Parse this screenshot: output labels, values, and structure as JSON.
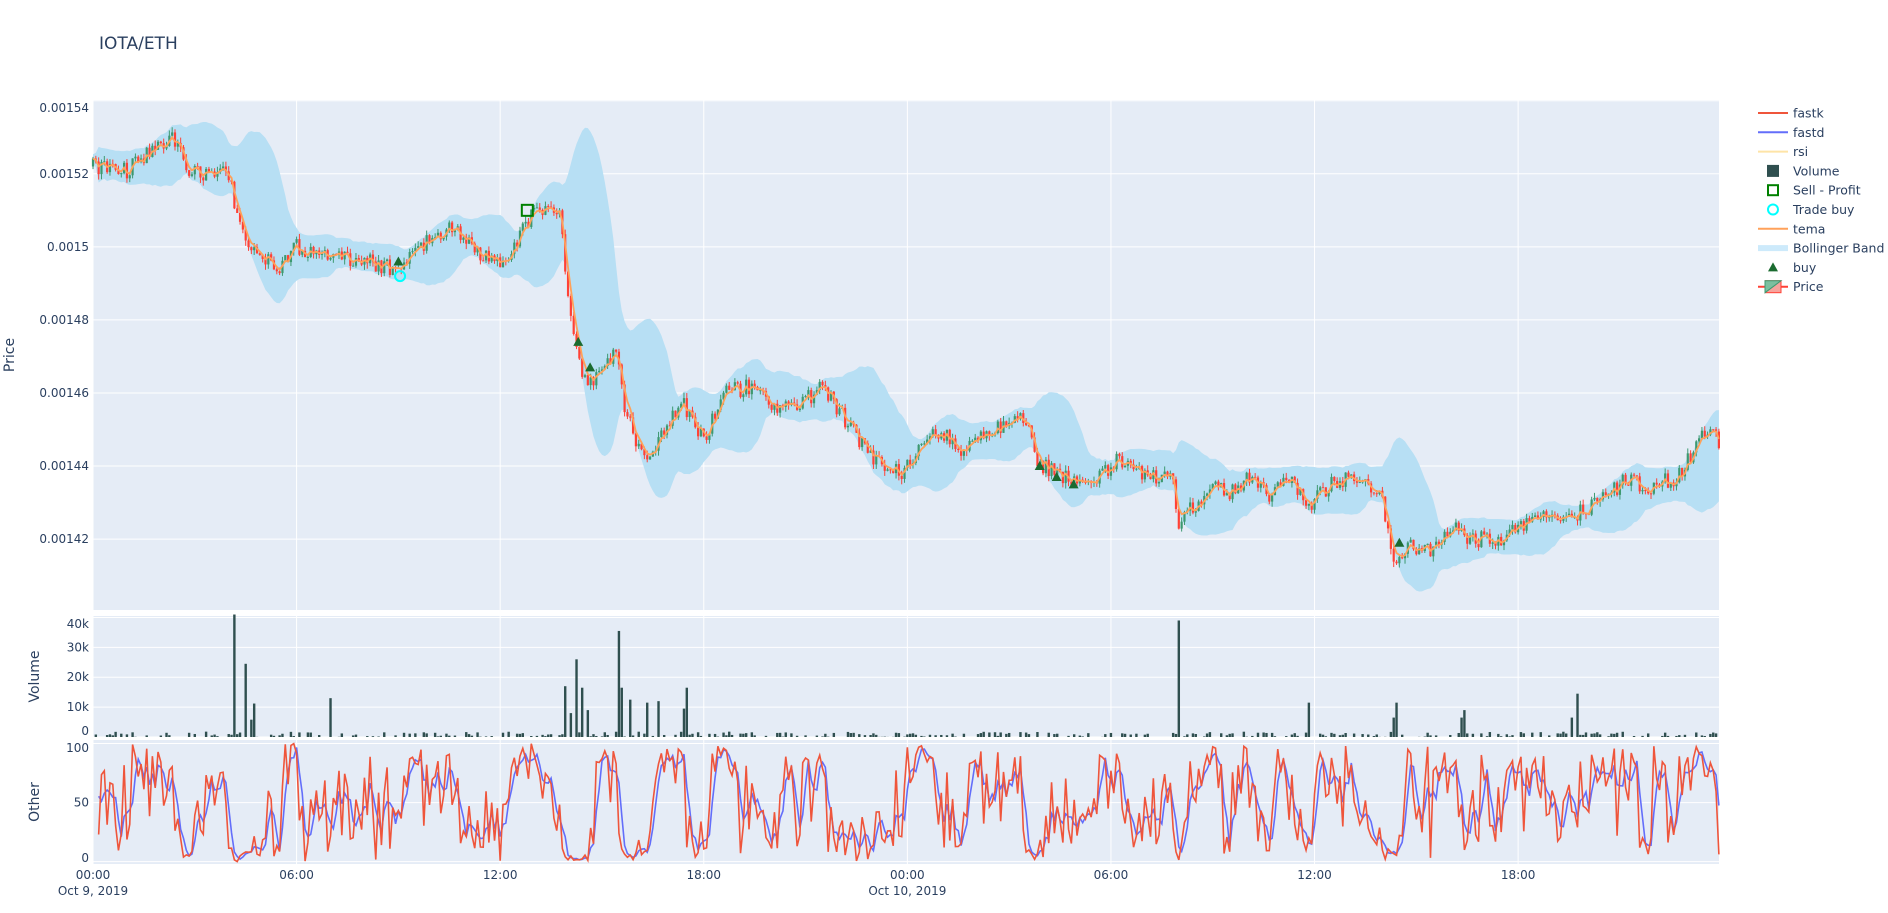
{
  "title": "IOTA/ETH",
  "colors": {
    "plot_bg": "#E5ECF6",
    "grid": "#ffffff",
    "increasing": "#3D9970",
    "decreasing": "#FF4136",
    "bollinger": "#b7dff4",
    "tema": "#FFA15A",
    "fastk": "#EF553B",
    "fastd": "#636EFA",
    "rsi": "#FECB52",
    "volume": "#2F4F4F",
    "buy": "#1b6b30",
    "trade_buy": "#00FFFF",
    "sell_profit": "#008000"
  },
  "legend": {
    "placement": "right",
    "items": [
      {
        "label": "fastk",
        "icon": "line",
        "hidden": false
      },
      {
        "label": "fastd",
        "icon": "line",
        "hidden": false
      },
      {
        "label": "rsi",
        "icon": "line",
        "hidden": true
      },
      {
        "label": "Volume",
        "icon": "square",
        "hidden": false
      },
      {
        "label": "Sell - Profit",
        "icon": "square-open",
        "hidden": false
      },
      {
        "label": "Trade buy",
        "icon": "circle-open",
        "hidden": false
      },
      {
        "label": "tema",
        "icon": "line",
        "hidden": false
      },
      {
        "label": "Bollinger Band",
        "icon": "band",
        "hidden": false
      },
      {
        "label": "buy",
        "icon": "triangle-up",
        "hidden": false
      },
      {
        "label": "Price",
        "icon": "candlestick",
        "hidden": false
      }
    ]
  },
  "chart_data": {
    "type": "candlestick",
    "interval": "5m",
    "x_ticks": [
      {
        "hour": 0,
        "label": "00:00",
        "sub": "Oct 9, 2019"
      },
      {
        "hour": 6,
        "label": "06:00",
        "sub": ""
      },
      {
        "hour": 12,
        "label": "12:00",
        "sub": ""
      },
      {
        "hour": 18,
        "label": "18:00",
        "sub": ""
      },
      {
        "hour": 24,
        "label": "00:00",
        "sub": "Oct 10, 2019"
      },
      {
        "hour": 30,
        "label": "06:00",
        "sub": ""
      },
      {
        "hour": 36,
        "label": "12:00",
        "sub": ""
      },
      {
        "hour": 42,
        "label": "18:00",
        "sub": ""
      }
    ],
    "x_range_hours": [
      0,
      47.92
    ],
    "grid": true,
    "panels": {
      "price": {
        "ylabel": "Price",
        "ylim": [
          0.0014006,
          0.0015402
        ],
        "ticks": [
          "0.00142",
          "0.00144",
          "0.00146",
          "0.00148",
          "0.0015",
          "0.00152",
          "0.00154"
        ],
        "tick_values": [
          0.00142,
          0.00144,
          0.00146,
          0.00148,
          0.0015,
          0.00152,
          0.00154
        ]
      },
      "volume": {
        "ylabel": "Volume",
        "ylim": [
          0,
          40500
        ],
        "ticks": [
          "0",
          "10k",
          "20k",
          "30k",
          "40k"
        ],
        "tick_values": [
          0,
          10000,
          20000,
          30000,
          40000
        ]
      },
      "other": {
        "ylabel": "Other",
        "ylim": [
          -2,
          103
        ],
        "ticks": [
          "0",
          "50",
          "100"
        ],
        "tick_values": [
          0,
          50,
          100
        ]
      }
    },
    "price_path": [
      [
        0,
        0.001522
      ],
      [
        1,
        0.001521
      ],
      [
        1.8,
        0.001527
      ],
      [
        2.4,
        0.00153
      ],
      [
        2.8,
        0.001521
      ],
      [
        3.5,
        0.00152
      ],
      [
        4.0,
        0.00152
      ],
      [
        4.3,
        0.001507
      ],
      [
        4.8,
        0.001497
      ],
      [
        5.5,
        0.001495
      ],
      [
        6,
        0.0015
      ],
      [
        7,
        0.001497
      ],
      [
        8,
        0.001496
      ],
      [
        9,
        0.001494
      ],
      [
        10,
        0.001503
      ],
      [
        10.7,
        0.001505
      ],
      [
        11.5,
        0.001497
      ],
      [
        12.2,
        0.001495
      ],
      [
        13,
        0.001511
      ],
      [
        13.8,
        0.001508
      ],
      [
        14.0,
        0.001485
      ],
      [
        14.3,
        0.001468
      ],
      [
        14.7,
        0.001462
      ],
      [
        15.4,
        0.001472
      ],
      [
        15.7,
        0.001455
      ],
      [
        16.3,
        0.00144
      ],
      [
        16.8,
        0.00145
      ],
      [
        17.4,
        0.001457
      ],
      [
        18,
        0.001447
      ],
      [
        18.6,
        0.00146
      ],
      [
        19.5,
        0.001462
      ],
      [
        20.3,
        0.001455
      ],
      [
        21,
        0.001458
      ],
      [
        21.5,
        0.001462
      ],
      [
        22,
        0.001455
      ],
      [
        23,
        0.001442
      ],
      [
        23.8,
        0.001438
      ],
      [
        24.5,
        0.001447
      ],
      [
        25,
        0.00145
      ],
      [
        25.5,
        0.001444
      ],
      [
        26.3,
        0.001448
      ],
      [
        27,
        0.001453
      ],
      [
        27.6,
        0.001453
      ],
      [
        27.8,
        0.001441
      ],
      [
        28.5,
        0.001438
      ],
      [
        29,
        0.001435
      ],
      [
        29.6,
        0.001436
      ],
      [
        30.2,
        0.001442
      ],
      [
        31,
        0.001437
      ],
      [
        31.8,
        0.001438
      ],
      [
        32.0,
        0.001425
      ],
      [
        32.3,
        0.001428
      ],
      [
        33,
        0.001434
      ],
      [
        33.6,
        0.001433
      ],
      [
        34,
        0.001437
      ],
      [
        34.7,
        0.001432
      ],
      [
        35.3,
        0.001437
      ],
      [
        35.8,
        0.001429
      ],
      [
        36.5,
        0.001435
      ],
      [
        37.2,
        0.001437
      ],
      [
        38,
        0.001432
      ],
      [
        38.3,
        0.001414
      ],
      [
        38.8,
        0.001418
      ],
      [
        39.5,
        0.001417
      ],
      [
        40.1,
        0.001424
      ],
      [
        40.5,
        0.00142
      ],
      [
        41.5,
        0.00142
      ],
      [
        42,
        0.001423
      ],
      [
        43,
        0.001427
      ],
      [
        43.7,
        0.001427
      ],
      [
        44.5,
        0.001431
      ],
      [
        45.3,
        0.001437
      ],
      [
        45.8,
        0.001433
      ],
      [
        46.2,
        0.001436
      ],
      [
        46.6,
        0.001436
      ],
      [
        47.1,
        0.001443
      ],
      [
        47.6,
        0.001451
      ],
      [
        47.92,
        0.001446
      ]
    ],
    "volume_spikes": [
      [
        4.17,
        41000
      ],
      [
        4.5,
        24500
      ],
      [
        4.75,
        11200
      ],
      [
        4.67,
        5800
      ],
      [
        7.0,
        13000
      ],
      [
        13.9,
        17000
      ],
      [
        14.1,
        8000
      ],
      [
        14.25,
        26000
      ],
      [
        14.4,
        16500
      ],
      [
        14.6,
        9000
      ],
      [
        15.5,
        35500
      ],
      [
        15.6,
        16500
      ],
      [
        15.8,
        12500
      ],
      [
        16.3,
        11500
      ],
      [
        16.7,
        12000
      ],
      [
        17.5,
        16500
      ],
      [
        17.4,
        9500
      ],
      [
        32.0,
        39000
      ],
      [
        35.8,
        11500
      ],
      [
        38.3,
        6500
      ],
      [
        38.4,
        11500
      ],
      [
        40.3,
        6500
      ],
      [
        40.4,
        9000
      ],
      [
        43.6,
        6500
      ],
      [
        43.75,
        14500
      ]
    ],
    "buy_signals": [
      [
        9.0,
        0.001496
      ],
      [
        14.3,
        0.001474
      ],
      [
        14.65,
        0.001467
      ],
      [
        27.9,
        0.00144
      ],
      [
        28.4,
        0.001437
      ],
      [
        28.9,
        0.001435
      ],
      [
        38.5,
        0.001419
      ]
    ],
    "trade_buys": [
      [
        9.05,
        0.001492
      ]
    ],
    "sell_profit": [
      [
        12.8,
        0.00151
      ]
    ]
  }
}
